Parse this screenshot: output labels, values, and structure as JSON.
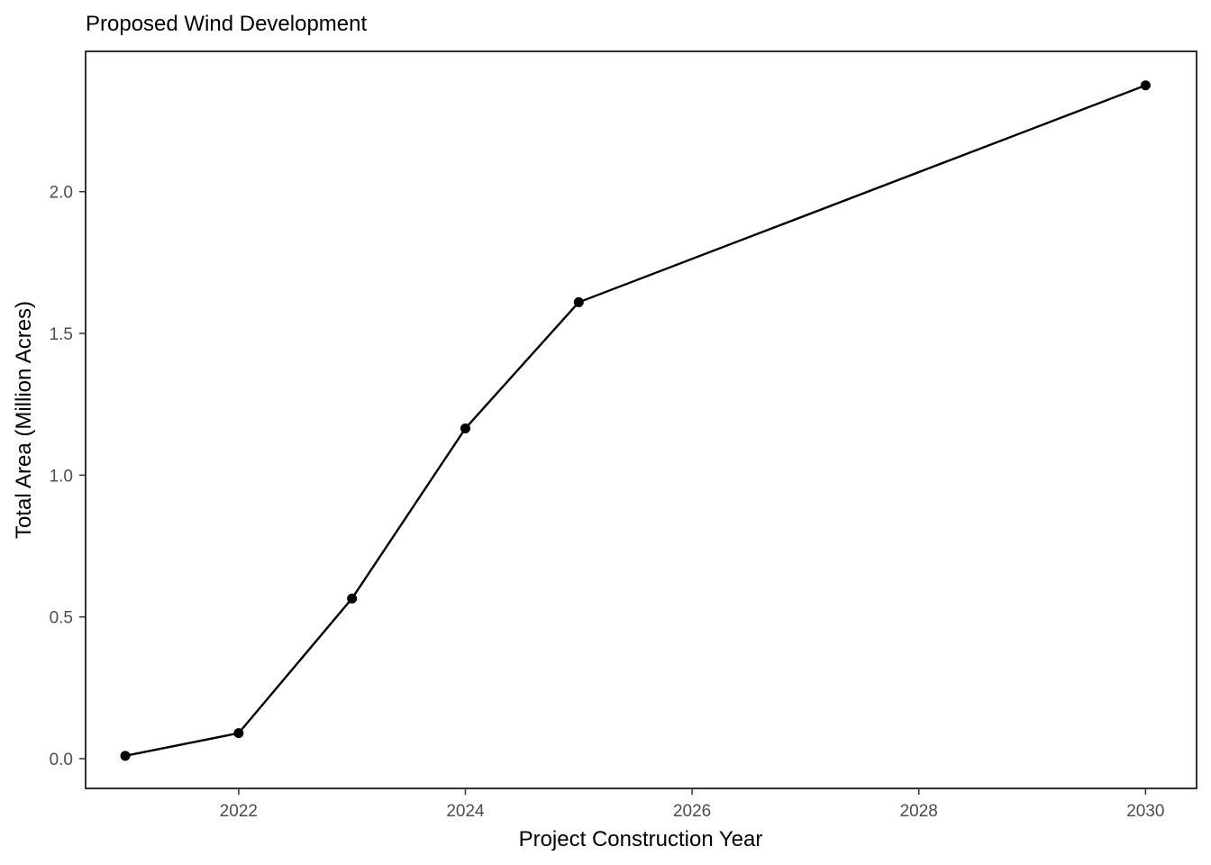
{
  "chart_data": {
    "type": "line",
    "title": "Proposed Wind Development",
    "xlabel": "Project Construction Year",
    "ylabel": "Total Area (Million Acres)",
    "x": [
      2021,
      2022,
      2023,
      2024,
      2025,
      2030
    ],
    "series": [
      {
        "values": [
          0.01,
          0.09,
          0.565,
          1.165,
          1.61,
          2.375
        ]
      }
    ],
    "xlim": [
      2020.65,
      2030.45
    ],
    "ylim": [
      -0.105,
      2.495
    ],
    "x_ticks": [
      2022,
      2024,
      2026,
      2028,
      2030
    ],
    "x_tick_labels": [
      "2022",
      "2024",
      "2026",
      "2028",
      "2030"
    ],
    "y_ticks": [
      0.0,
      0.5,
      1.0,
      1.5,
      2.0
    ],
    "y_tick_labels": [
      "0.0",
      "0.5",
      "1.0",
      "1.5",
      "2.0"
    ],
    "grid": false,
    "legend": "none",
    "colors": {
      "line": "#000000",
      "point": "#000000",
      "panel_border": "#000000",
      "tick_label": "#4d4d4d",
      "background": "#ffffff"
    }
  }
}
